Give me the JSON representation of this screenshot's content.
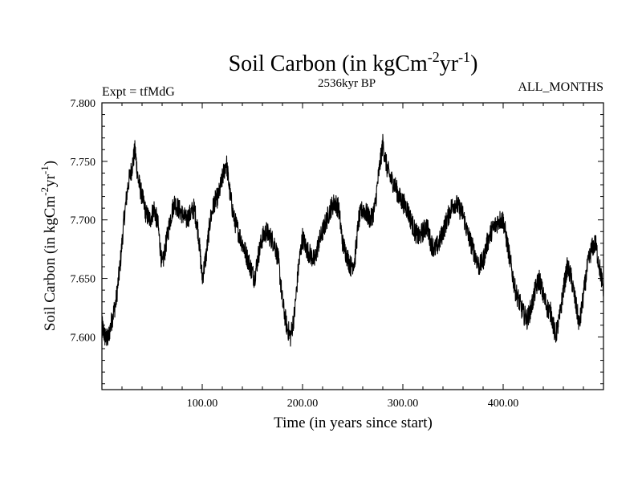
{
  "header": {
    "experiment": "Expt = tfMdG",
    "period": "2536kyr BP",
    "months": "ALL_MONTHS"
  },
  "chart_data": {
    "type": "line",
    "title": {
      "main": "Soil Carbon (in kgCm",
      "sup1": "-2",
      "mid": "yr",
      "sup2": "-1",
      "end": ")"
    },
    "ylabel": {
      "main": "Soil Carbon (in kgCm",
      "sup1": "-2",
      "mid": "yr",
      "sup2": "-1",
      "end": ")"
    },
    "xlabel": "Time (in years since start)",
    "xlim": [
      0,
      500
    ],
    "ylim": [
      7.555,
      7.8
    ],
    "x_ticks": [
      {
        "value": 100,
        "label": "100.00"
      },
      {
        "value": 200,
        "label": "200.00"
      },
      {
        "value": 300,
        "label": "300.00"
      },
      {
        "value": 400,
        "label": "400.00"
      }
    ],
    "y_ticks": [
      {
        "value": 7.6,
        "label": "7.600"
      },
      {
        "value": 7.65,
        "label": "7.650"
      },
      {
        "value": 7.7,
        "label": "7.700"
      },
      {
        "value": 7.75,
        "label": "7.750"
      },
      {
        "value": 7.8,
        "label": "7.800"
      }
    ],
    "series": [
      {
        "name": "Soil Carbon",
        "color": "#000000",
        "x": [
          0,
          3,
          6,
          10,
          14,
          18,
          22,
          26,
          30,
          33,
          36,
          40,
          44,
          48,
          52,
          56,
          60,
          64,
          68,
          72,
          76,
          80,
          84,
          88,
          92,
          96,
          100,
          104,
          108,
          112,
          116,
          120,
          124,
          128,
          132,
          136,
          140,
          144,
          148,
          152,
          156,
          160,
          164,
          168,
          172,
          176,
          180,
          184,
          188,
          192,
          196,
          200,
          204,
          208,
          212,
          216,
          220,
          224,
          228,
          232,
          236,
          240,
          244,
          248,
          252,
          256,
          260,
          264,
          268,
          272,
          276,
          280,
          284,
          288,
          292,
          296,
          300,
          304,
          308,
          312,
          316,
          320,
          324,
          328,
          332,
          336,
          340,
          344,
          348,
          352,
          356,
          360,
          364,
          368,
          372,
          376,
          380,
          384,
          388,
          392,
          396,
          400,
          404,
          408,
          412,
          416,
          420,
          424,
          428,
          432,
          436,
          440,
          444,
          448,
          452,
          456,
          460,
          464,
          468,
          472,
          476,
          480,
          484,
          488,
          492,
          496,
          500
        ],
        "values": [
          7.61,
          7.6,
          7.598,
          7.615,
          7.63,
          7.66,
          7.7,
          7.73,
          7.745,
          7.76,
          7.735,
          7.72,
          7.705,
          7.7,
          7.71,
          7.695,
          7.66,
          7.68,
          7.7,
          7.715,
          7.71,
          7.705,
          7.7,
          7.705,
          7.71,
          7.69,
          7.65,
          7.67,
          7.7,
          7.715,
          7.72,
          7.735,
          7.75,
          7.72,
          7.7,
          7.69,
          7.68,
          7.67,
          7.66,
          7.65,
          7.67,
          7.685,
          7.69,
          7.685,
          7.68,
          7.665,
          7.63,
          7.61,
          7.6,
          7.62,
          7.66,
          7.685,
          7.675,
          7.67,
          7.665,
          7.68,
          7.69,
          7.7,
          7.71,
          7.715,
          7.71,
          7.68,
          7.67,
          7.66,
          7.665,
          7.7,
          7.71,
          7.705,
          7.7,
          7.71,
          7.74,
          7.765,
          7.745,
          7.735,
          7.73,
          7.72,
          7.715,
          7.71,
          7.7,
          7.69,
          7.685,
          7.69,
          7.695,
          7.68,
          7.675,
          7.68,
          7.69,
          7.7,
          7.71,
          7.715,
          7.71,
          7.705,
          7.69,
          7.68,
          7.67,
          7.66,
          7.665,
          7.68,
          7.69,
          7.695,
          7.7,
          7.7,
          7.68,
          7.66,
          7.64,
          7.63,
          7.62,
          7.615,
          7.625,
          7.64,
          7.65,
          7.635,
          7.625,
          7.62,
          7.6,
          7.615,
          7.64,
          7.66,
          7.65,
          7.63,
          7.61,
          7.635,
          7.66,
          7.675,
          7.68,
          7.66,
          7.64
        ]
      }
    ]
  }
}
